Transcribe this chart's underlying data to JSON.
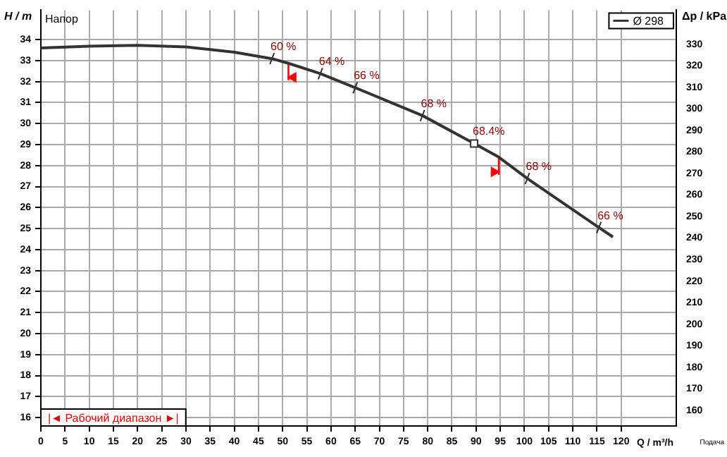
{
  "chart_data": {
    "type": "line",
    "xlabel": "Q / m³/h",
    "ylabel": "H / m",
    "y2label": "Δp / kPa",
    "xlim": [
      0,
      131.4
    ],
    "xticks": [
      0,
      5,
      10,
      15,
      20,
      25,
      30,
      35,
      40,
      45,
      50,
      55,
      60,
      65,
      70,
      75,
      80,
      85,
      90,
      95,
      100,
      105,
      110,
      115,
      120
    ],
    "ylim": [
      15.6,
      35.4
    ],
    "yticks": [
      16,
      17,
      18,
      19,
      20,
      21,
      22,
      23,
      24,
      25,
      26,
      27,
      28,
      29,
      30,
      31,
      32,
      33,
      34
    ],
    "y2lim": [
      152.8,
      345.8
    ],
    "y2ticks": [
      160,
      170,
      180,
      190,
      200,
      210,
      220,
      230,
      240,
      250,
      260,
      270,
      280,
      290,
      300,
      310,
      320,
      330
    ],
    "grid": true,
    "legend": "top right",
    "marker": "none",
    "line_style": "solid",
    "series": [
      {
        "name": "Ø 298",
        "color": "#333333",
        "x": [
          0,
          10,
          20,
          30,
          40,
          47.8,
          51.2,
          57.8,
          65,
          78.9,
          89.6,
          94.7,
          100.6,
          115.4,
          118.3
        ],
        "values": [
          33.6,
          33.68,
          33.73,
          33.65,
          33.4,
          33.09,
          32.87,
          32.38,
          31.71,
          30.38,
          29.05,
          28.4,
          27.38,
          25.05,
          24.6
        ]
      },
      {
        "type": "scatter",
        "marker": "square",
        "color": "#333333",
        "x": [
          89.6
        ],
        "values": [
          29.05
        ]
      },
      {
        "color": "#ff0000",
        "x": [
          51.2,
          51.2
        ],
        "values": [
          32.87,
          32.1
        ]
      },
      {
        "color": "#ff0000",
        "x": [
          94.7,
          94.7
        ],
        "values": [
          28.4,
          27.6
        ]
      },
      {
        "type": "scatter",
        "marker": "triangle",
        "color": "#ff0000",
        "x": [
          52.2
        ],
        "values": [
          32.2
        ]
      },
      {
        "type": "scatter",
        "marker": "triangle",
        "color": "#ff0000",
        "x": [
          93.7
        ],
        "values": [
          27.7
        ]
      }
    ],
    "annotations": [
      "Напор",
      "|◄ Рабочий диапазон ►|",
      "Подача",
      {
        "text": "60 %",
        "x": 47.8,
        "y": 33.09
      },
      {
        "text": "64 %",
        "x": 57.8,
        "y": 32.38
      },
      {
        "text": "66 %",
        "x": 65,
        "y": 31.71
      },
      {
        "text": "68 %",
        "x": 78.9,
        "y": 30.38
      },
      {
        "text": "68.4%",
        "x": 89.6,
        "y": 29.05
      },
      {
        "text": "68 %",
        "x": 100.6,
        "y": 27.38
      },
      {
        "text": "66 %",
        "x": 115.4,
        "y": 25.05
      }
    ]
  }
}
